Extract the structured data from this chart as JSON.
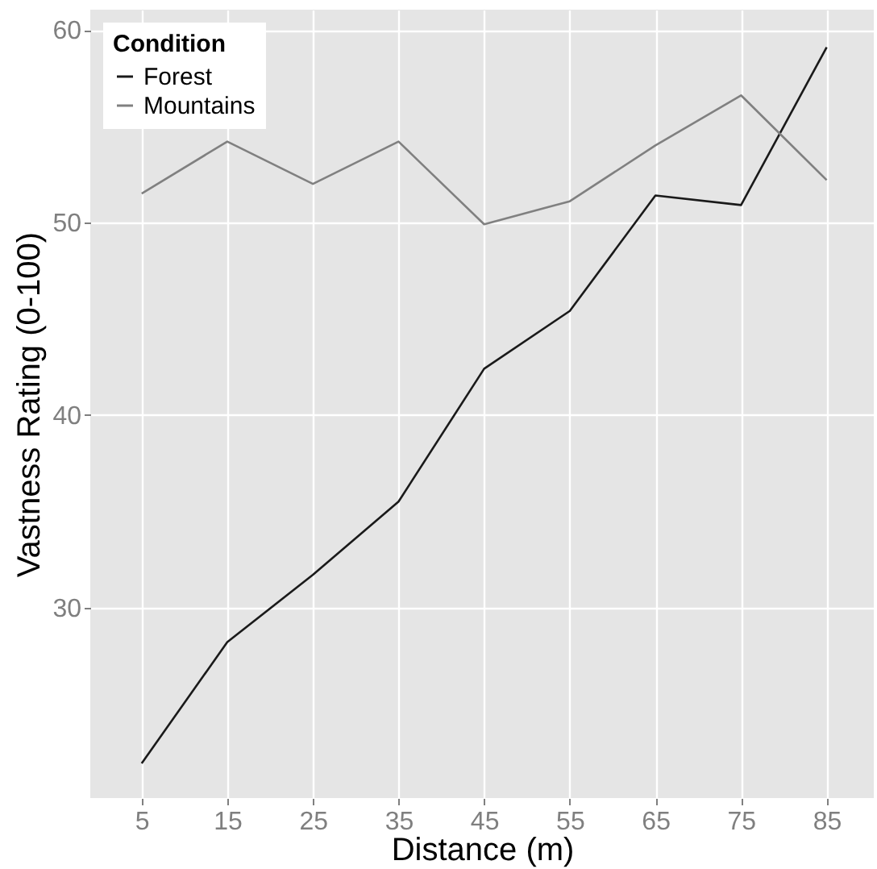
{
  "chart_data": {
    "type": "line",
    "xlabel": "Distance (m)",
    "ylabel": "Vastness Rating (0-100)",
    "legend_title": "Condition",
    "x": [
      5,
      15,
      25,
      35,
      45,
      55,
      65,
      75,
      85
    ],
    "series": [
      {
        "name": "Forest",
        "color": "#1a1a1a",
        "values": [
          21.9,
          28.2,
          31.7,
          35.5,
          42.4,
          45.4,
          51.4,
          50.9,
          59.1
        ]
      },
      {
        "name": "Mountains",
        "color": "#808080",
        "values": [
          51.5,
          54.2,
          52.0,
          54.2,
          49.9,
          51.1,
          54.0,
          56.6,
          52.2
        ]
      }
    ],
    "xlim": [
      -1,
      90.5
    ],
    "xticks": [
      5,
      15,
      25,
      35,
      45,
      55,
      65,
      75,
      85
    ],
    "ylim": [
      20.1,
      61.05
    ],
    "yticks": [
      30,
      40,
      50,
      60
    ],
    "grid": true,
    "legend": "top left",
    "marker": "none",
    "line_style": "solid"
  }
}
